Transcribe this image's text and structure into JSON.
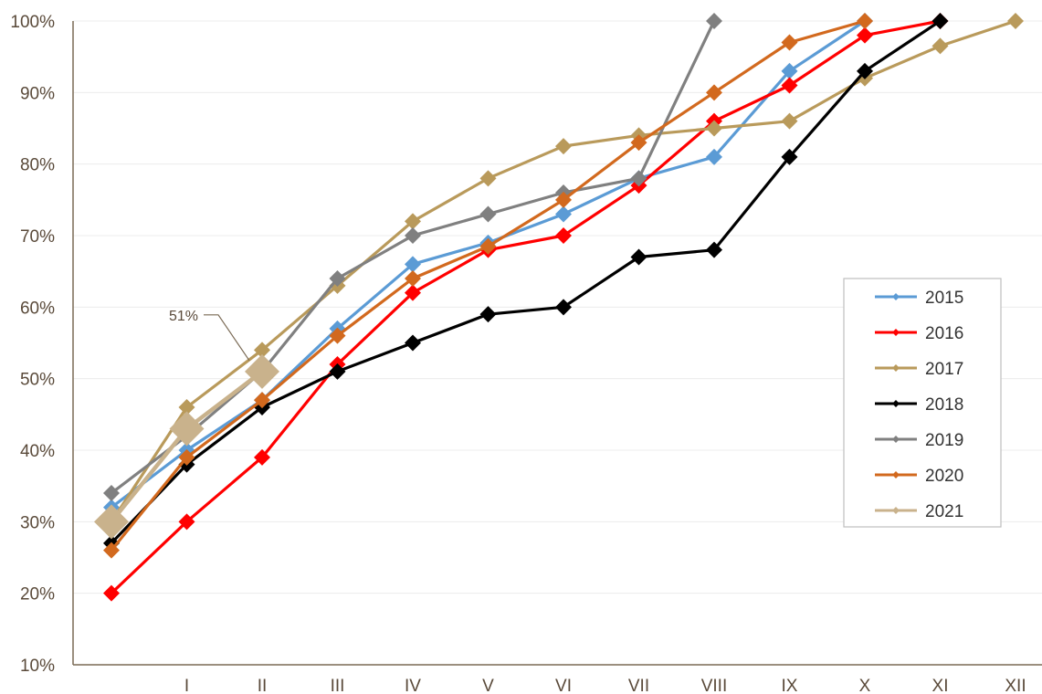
{
  "chart_data": {
    "type": "line",
    "title": "",
    "xlabel": "",
    "ylabel": "",
    "categories": [
      "",
      "I",
      "II",
      "III",
      "IV",
      "V",
      "VI",
      "VII",
      "VIII",
      "IX",
      "X",
      "XI",
      "XII"
    ],
    "ylim": [
      10,
      100
    ],
    "y_ticks": [
      "10%",
      "20%",
      "30%",
      "40%",
      "50%",
      "60%",
      "70%",
      "80%",
      "90%",
      "100%"
    ],
    "grid": "horizontal",
    "legend_position": "right",
    "series": [
      {
        "name": "2015",
        "color": "#5b9bd5",
        "values": [
          32,
          40,
          47,
          57,
          66,
          69,
          73,
          78,
          81,
          93,
          100,
          null,
          null
        ]
      },
      {
        "name": "2016",
        "color": "#ff0000",
        "values": [
          20,
          30,
          39,
          52,
          62,
          68,
          70,
          77,
          86,
          91,
          98,
          100,
          null
        ]
      },
      {
        "name": "2017",
        "color": "#b99a5b",
        "values": [
          30,
          46,
          54,
          63,
          72,
          78,
          82.5,
          84,
          85,
          86,
          92,
          96.5,
          100
        ]
      },
      {
        "name": "2018",
        "color": "#000000",
        "values": [
          27,
          38,
          46,
          51,
          55,
          59,
          60,
          67,
          68,
          81,
          93,
          100,
          null
        ]
      },
      {
        "name": "2019",
        "color": "#808080",
        "values": [
          34,
          42,
          51,
          64,
          70,
          73,
          76,
          78,
          100,
          null,
          null,
          null,
          null
        ]
      },
      {
        "name": "2020",
        "color": "#d2691e",
        "values": [
          26,
          39,
          47,
          56,
          64,
          68.5,
          75,
          83,
          90,
          97,
          100,
          null,
          null
        ]
      },
      {
        "name": "2021",
        "color": "#c9b28c",
        "values": [
          30,
          43,
          51,
          null,
          null,
          null,
          null,
          null,
          null,
          null,
          null,
          null,
          null
        ]
      }
    ],
    "annotations": [
      {
        "text": "51%",
        "series": "2021",
        "category": "II"
      }
    ]
  }
}
